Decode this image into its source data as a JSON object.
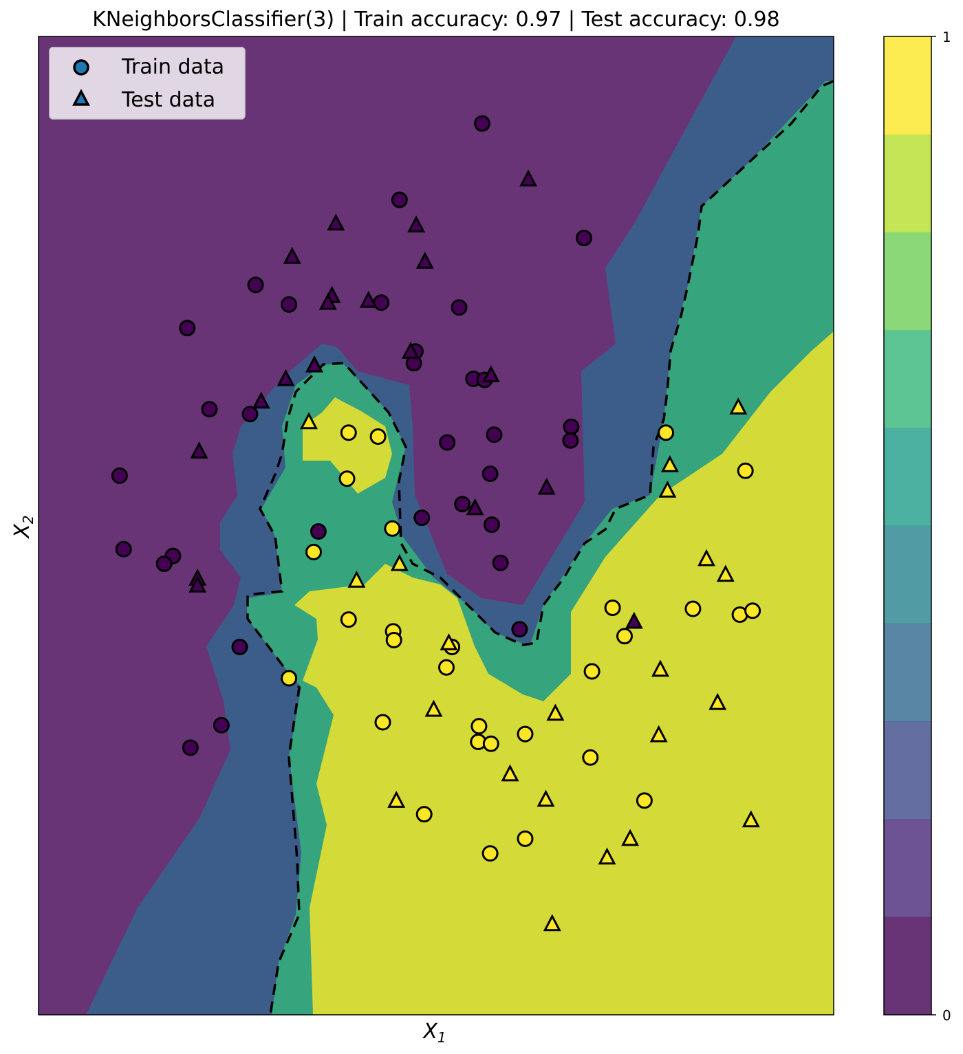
{
  "chart_data": {
    "type": "scatter",
    "title": "KNeighborsClassifier(3) | Train accuracy: 0.97 | Test accuracy: 0.98",
    "xlabel": "X",
    "xlabel_sub": "1",
    "ylabel": "X",
    "ylabel_sub": "2",
    "xlim": [
      0,
      100
    ],
    "ylim": [
      0,
      100
    ],
    "x_ticks_shown": false,
    "y_ticks_shown": false,
    "grid": false,
    "legend": {
      "placement": "top-left",
      "entries": [
        {
          "label": "Train data",
          "marker": "circle"
        },
        {
          "label": "Test data",
          "marker": "triangle"
        }
      ]
    },
    "colorbar": {
      "ticks": [
        "0",
        "1"
      ],
      "levels": 10,
      "colors": [
        "#440154",
        "#482878",
        "#3e4a89",
        "#31688e",
        "#26828e",
        "#1f9e89",
        "#35b779",
        "#6ece58",
        "#b5de2b",
        "#fde725"
      ]
    },
    "class_colors": {
      "0": "#440154",
      "1": "#fde725"
    },
    "decision_boundary_style": "dashed",
    "series": [
      {
        "name": "Train data",
        "marker": "circle",
        "points": [
          [
            55.8,
            91.1,
            0
          ],
          [
            45.4,
            83.3,
            0
          ],
          [
            68.6,
            79.4,
            0
          ],
          [
            27.3,
            74.6,
            0
          ],
          [
            31.5,
            72.6,
            0
          ],
          [
            43.1,
            72.8,
            0
          ],
          [
            52.9,
            72.3,
            0
          ],
          [
            18.7,
            70.2,
            0
          ],
          [
            47.4,
            67.8,
            0
          ],
          [
            47.2,
            66.6,
            0
          ],
          [
            54.7,
            65.0,
            0
          ],
          [
            56.1,
            64.9,
            0
          ],
          [
            26.6,
            61.4,
            0
          ],
          [
            21.5,
            61.9,
            0
          ],
          [
            67.0,
            60.1,
            0
          ],
          [
            66.9,
            58.7,
            0
          ],
          [
            57.3,
            59.3,
            0
          ],
          [
            51.4,
            58.5,
            0
          ],
          [
            10.2,
            55.1,
            0
          ],
          [
            56.8,
            55.3,
            0
          ],
          [
            53.3,
            52.2,
            0
          ],
          [
            57.0,
            50.1,
            0
          ],
          [
            48.2,
            50.8,
            0
          ],
          [
            35.2,
            49.4,
            0
          ],
          [
            10.7,
            47.6,
            0
          ],
          [
            16.9,
            46.9,
            0
          ],
          [
            15.8,
            46.1,
            0
          ],
          [
            58.1,
            46.2,
            0
          ],
          [
            60.5,
            39.4,
            0
          ],
          [
            25.3,
            37.6,
            0
          ],
          [
            23.0,
            29.6,
            0
          ],
          [
            19.1,
            27.3,
            0
          ],
          [
            42.7,
            59.1,
            1
          ],
          [
            78.9,
            59.5,
            1
          ],
          [
            39.0,
            59.5,
            1
          ],
          [
            88.9,
            55.6,
            1
          ],
          [
            38.8,
            54.8,
            1
          ],
          [
            44.5,
            49.7,
            1
          ],
          [
            34.6,
            47.3,
            1
          ],
          [
            72.2,
            41.6,
            1
          ],
          [
            82.3,
            41.5,
            1
          ],
          [
            39.0,
            40.4,
            1
          ],
          [
            88.2,
            40.9,
            1
          ],
          [
            89.8,
            41.3,
            1
          ],
          [
            44.6,
            39.2,
            1
          ],
          [
            44.7,
            38.3,
            1
          ],
          [
            73.7,
            38.7,
            1
          ],
          [
            52.0,
            37.6,
            1
          ],
          [
            51.3,
            35.5,
            1
          ],
          [
            69.6,
            35.1,
            1
          ],
          [
            31.5,
            34.4,
            1
          ],
          [
            43.3,
            29.9,
            1
          ],
          [
            55.4,
            29.5,
            1
          ],
          [
            61.2,
            28.7,
            1
          ],
          [
            55.3,
            27.9,
            1
          ],
          [
            56.9,
            27.7,
            1
          ],
          [
            69.4,
            26.3,
            1
          ],
          [
            76.2,
            21.9,
            1
          ],
          [
            48.5,
            20.5,
            1
          ],
          [
            61.2,
            18.0,
            1
          ],
          [
            56.8,
            16.5,
            1
          ]
        ]
      },
      {
        "name": "Test data",
        "marker": "triangle",
        "points": [
          [
            61.6,
            85.4,
            0
          ],
          [
            37.4,
            80.9,
            0
          ],
          [
            47.5,
            80.7,
            0
          ],
          [
            31.9,
            77.5,
            0
          ],
          [
            48.6,
            77.0,
            0
          ],
          [
            36.9,
            73.5,
            0
          ],
          [
            36.4,
            72.8,
            0
          ],
          [
            41.5,
            73.0,
            0
          ],
          [
            46.8,
            67.8,
            0
          ],
          [
            34.7,
            66.4,
            0
          ],
          [
            31.1,
            65.0,
            0
          ],
          [
            56.9,
            65.4,
            0
          ],
          [
            28.0,
            62.7,
            0
          ],
          [
            20.2,
            57.6,
            0
          ],
          [
            63.9,
            53.9,
            0
          ],
          [
            54.9,
            51.8,
            0
          ],
          [
            20.0,
            44.6,
            0
          ],
          [
            20.0,
            43.9,
            0
          ],
          [
            74.9,
            40.2,
            0
          ],
          [
            34.0,
            60.6,
            1
          ],
          [
            88.0,
            62.1,
            1
          ],
          [
            79.4,
            56.2,
            1
          ],
          [
            79.1,
            53.6,
            1
          ],
          [
            45.4,
            46.1,
            1
          ],
          [
            40.0,
            44.4,
            1
          ],
          [
            84.0,
            46.6,
            1
          ],
          [
            86.4,
            45.0,
            1
          ],
          [
            51.6,
            38.0,
            1
          ],
          [
            78.2,
            35.3,
            1
          ],
          [
            49.7,
            31.2,
            1
          ],
          [
            85.4,
            31.9,
            1
          ],
          [
            65.0,
            30.8,
            1
          ],
          [
            78.0,
            28.6,
            1
          ],
          [
            59.3,
            24.6,
            1
          ],
          [
            63.8,
            22.0,
            1
          ],
          [
            45.0,
            21.9,
            1
          ],
          [
            89.6,
            19.9,
            1
          ],
          [
            74.4,
            18.0,
            1
          ],
          [
            71.5,
            16.1,
            1
          ],
          [
            64.6,
            9.3,
            1
          ]
        ]
      }
    ]
  }
}
